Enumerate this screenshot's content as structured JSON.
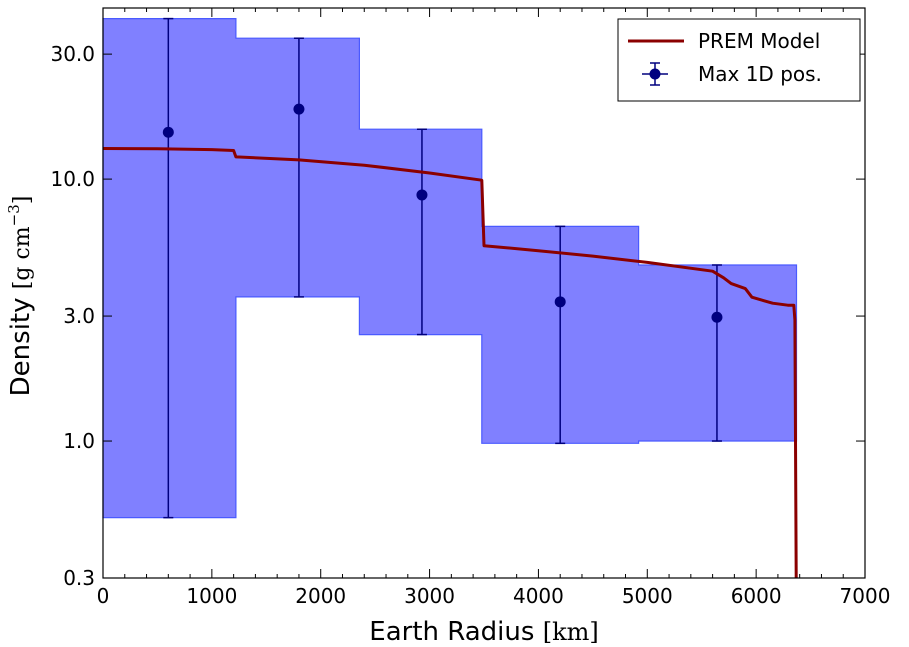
{
  "chart_data": {
    "type": "line",
    "xlabel": "Earth Radius",
    "xlabel_unit": "[km]",
    "ylabel": "Density",
    "ylabel_unit_prefix": "[g cm",
    "ylabel_unit_exp": "−3",
    "ylabel_unit_suffix": "]",
    "xlim": [
      0,
      7000
    ],
    "ylim": [
      0.3,
      45
    ],
    "yscale": "log",
    "grid": false,
    "legend_position": "top-right",
    "x_ticks": [
      {
        "value": 0,
        "label": "0"
      },
      {
        "value": 1000,
        "label": "1000"
      },
      {
        "value": 2000,
        "label": "2000"
      },
      {
        "value": 3000,
        "label": "3000"
      },
      {
        "value": 4000,
        "label": "4000"
      },
      {
        "value": 5000,
        "label": "5000"
      },
      {
        "value": 6000,
        "label": "6000"
      },
      {
        "value": 7000,
        "label": "7000"
      }
    ],
    "y_ticks": [
      {
        "value": 0.3,
        "label": "0.3"
      },
      {
        "value": 1.0,
        "label": "1.0"
      },
      {
        "value": 3.0,
        "label": "3.0"
      },
      {
        "value": 10.0,
        "label": "10.0"
      },
      {
        "value": 30.0,
        "label": "30.0"
      }
    ],
    "band": {
      "color": "#8080ff",
      "edge_color": "#4a5aff",
      "segments": [
        {
          "x0": 0,
          "x1": 1221,
          "low": 0.51,
          "high": 41
        },
        {
          "x0": 1221,
          "x1": 2355,
          "low": 3.55,
          "high": 34.5
        },
        {
          "x0": 2355,
          "x1": 3480,
          "low": 2.55,
          "high": 15.5
        },
        {
          "x0": 3480,
          "x1": 4920,
          "low": 0.98,
          "high": 6.6
        },
        {
          "x0": 4920,
          "x1": 6371,
          "low": 1.0,
          "high": 4.7
        }
      ]
    },
    "series": [
      {
        "name": "PREM Model",
        "kind": "line",
        "color": "#8b0000",
        "x": [
          0,
          500,
          1000,
          1200,
          1221,
          1250,
          1800,
          2400,
          3000,
          3480,
          3500,
          4000,
          4500,
          5000,
          5600,
          5701,
          5771,
          5900,
          5961,
          6151,
          6291,
          6346,
          6356,
          6368
        ],
        "y": [
          13.09,
          13.06,
          12.96,
          12.86,
          12.16,
          12.14,
          11.84,
          11.3,
          10.55,
          9.9,
          5.57,
          5.33,
          5.08,
          4.81,
          4.45,
          4.2,
          3.99,
          3.82,
          3.54,
          3.36,
          3.3,
          3.3,
          2.9,
          0.3
        ]
      },
      {
        "name": "Max 1D pos.",
        "kind": "errorbar",
        "color": "#00007f",
        "x": [
          600,
          1800,
          2930,
          4200,
          5640
        ],
        "y": [
          15.1,
          18.5,
          8.7,
          3.4,
          2.97
        ],
        "ylow": [
          0.51,
          3.55,
          2.55,
          0.98,
          1.0
        ],
        "yhigh": [
          41,
          34.5,
          15.5,
          6.6,
          4.7
        ]
      }
    ]
  }
}
